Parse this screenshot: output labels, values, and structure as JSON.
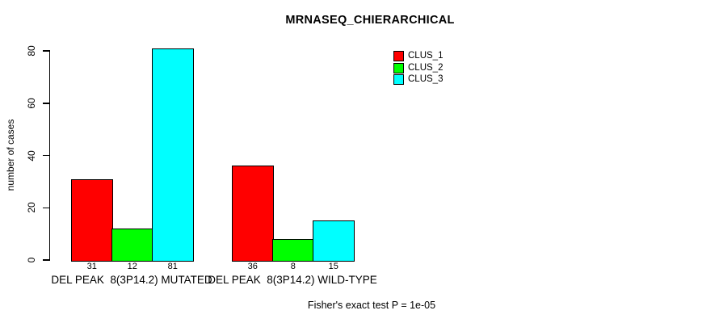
{
  "chart_data": {
    "type": "bar",
    "title": "MRNASEQ_CHIERARCHICAL",
    "xlabel": "",
    "ylabel": "number of cases",
    "ylim": [
      0,
      80
    ],
    "yticks": [
      0,
      20,
      40,
      60,
      80
    ],
    "grid": false,
    "legend_position": "top-right-inside",
    "categories": [
      "DEL PEAK  8(3P14.2) MUTATED",
      "DEL PEAK  8(3P14.2) WILD-TYPE"
    ],
    "series": [
      {
        "name": "CLUS_1",
        "color": "#FF0000",
        "values": [
          31,
          36
        ]
      },
      {
        "name": "CLUS_2",
        "color": "#00FF00",
        "values": [
          12,
          8
        ]
      },
      {
        "name": "CLUS_3",
        "color": "#00FFFF",
        "values": [
          81,
          15
        ]
      }
    ],
    "bar_value_labels": [
      [
        "31",
        "12",
        "81"
      ],
      [
        "36",
        "8",
        "15"
      ]
    ],
    "annotation": "Fisher's exact test P = 1e-05"
  },
  "colors": {
    "axis": "#000000",
    "background": "#FFFFFF",
    "clus_1": "#FF0000",
    "clus_2": "#00FF00",
    "clus_3": "#00FFFF"
  }
}
